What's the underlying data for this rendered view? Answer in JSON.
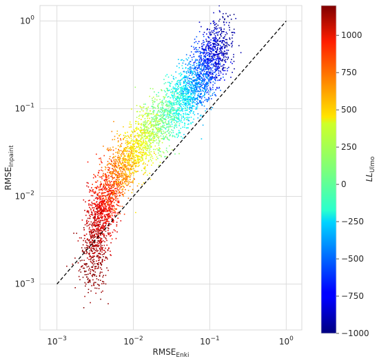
{
  "chart_data": {
    "type": "scatter",
    "title": "",
    "xlabel": {
      "main": "RMSE",
      "sub": "Enki"
    },
    "ylabel": {
      "main": "RMSE",
      "sub": "Inpaint"
    },
    "xscale": "log",
    "yscale": "log",
    "xlim": [
      0.0006,
      1.6
    ],
    "ylim": [
      0.0003,
      1.5
    ],
    "grid": true,
    "x_ticks": [
      {
        "value": 0.001,
        "base": "10",
        "exp": "−3"
      },
      {
        "value": 0.01,
        "base": "10",
        "exp": "−2"
      },
      {
        "value": 0.1,
        "base": "10",
        "exp": "−1"
      },
      {
        "value": 1,
        "base": "10",
        "exp": "0"
      }
    ],
    "y_ticks": [
      {
        "value": 0.001,
        "base": "10",
        "exp": "−3"
      },
      {
        "value": 0.01,
        "base": "10",
        "exp": "−2"
      },
      {
        "value": 0.1,
        "base": "10",
        "exp": "−1"
      },
      {
        "value": 1,
        "base": "10",
        "exp": "0"
      }
    ],
    "reference_line": {
      "style": "dashed",
      "color": "#000000",
      "x": [
        0.001,
        1
      ],
      "y": [
        0.001,
        1
      ]
    },
    "series": [
      {
        "color_variable": "LL_Ulmo",
        "trend": [
          {
            "ll": 1200,
            "x": 0.0028,
            "y": 0.0012
          },
          {
            "ll": 1100,
            "x": 0.0032,
            "y": 0.0035
          },
          {
            "ll": 1000,
            "x": 0.0036,
            "y": 0.006
          },
          {
            "ll": 900,
            "x": 0.0042,
            "y": 0.009
          },
          {
            "ll": 750,
            "x": 0.0052,
            "y": 0.014
          },
          {
            "ll": 600,
            "x": 0.007,
            "y": 0.022
          },
          {
            "ll": 450,
            "x": 0.0095,
            "y": 0.032
          },
          {
            "ll": 300,
            "x": 0.014,
            "y": 0.045
          },
          {
            "ll": 150,
            "x": 0.02,
            "y": 0.065
          },
          {
            "ll": 0,
            "x": 0.029,
            "y": 0.09
          },
          {
            "ll": -150,
            "x": 0.04,
            "y": 0.12
          },
          {
            "ll": -300,
            "x": 0.055,
            "y": 0.16
          },
          {
            "ll": -450,
            "x": 0.07,
            "y": 0.21
          },
          {
            "ll": -600,
            "x": 0.09,
            "y": 0.3
          },
          {
            "ll": -800,
            "x": 0.11,
            "y": 0.42
          },
          {
            "ll": -1000,
            "x": 0.15,
            "y": 0.65
          }
        ]
      }
    ],
    "colorbar": {
      "label": {
        "main": "LL",
        "sub": "Ulmo"
      },
      "min": -1000,
      "max": 1200,
      "colormap": "jet",
      "ticks": [
        {
          "value": 1000,
          "label": "1000"
        },
        {
          "value": 750,
          "label": "750"
        },
        {
          "value": 500,
          "label": "500"
        },
        {
          "value": 250,
          "label": "250"
        },
        {
          "value": 0,
          "label": "0"
        },
        {
          "value": -250,
          "label": "−250"
        },
        {
          "value": -500,
          "label": "−500"
        },
        {
          "value": -750,
          "label": "−750"
        },
        {
          "value": -1000,
          "label": "−1000"
        }
      ]
    }
  }
}
